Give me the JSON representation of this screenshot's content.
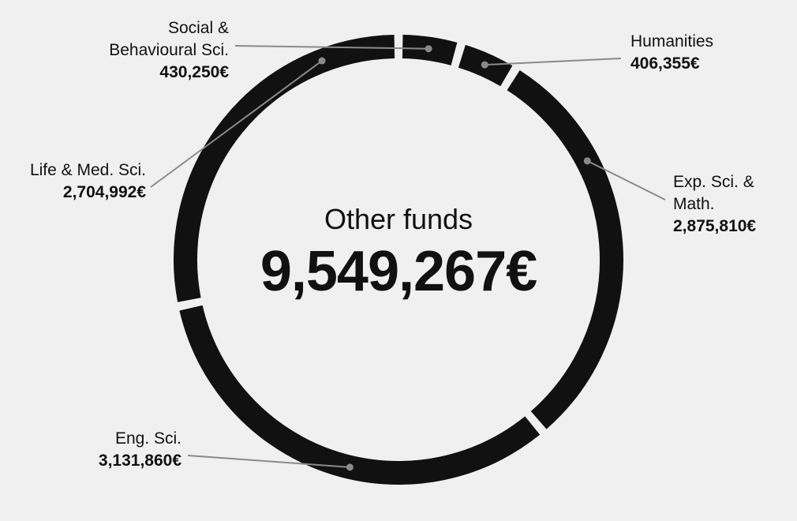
{
  "center": {
    "title": "Other funds",
    "total": "9,549,267€"
  },
  "colors": {
    "background": "#f0f0f0",
    "ring": "#111111",
    "leader": "#8a8a8a"
  },
  "chart_data": {
    "type": "pie",
    "title": "Other funds",
    "total": 9549267,
    "unit": "€",
    "slices": [
      {
        "name": "Social & Behavioural Sci.",
        "name_lines": [
          "Social &",
          "Behavioural Sci."
        ],
        "value": 430250,
        "label": "430,250€"
      },
      {
        "name": "Humanities",
        "name_lines": [
          "Humanities"
        ],
        "value": 406355,
        "label": "406,355€"
      },
      {
        "name": "Exp. Sci. & Math.",
        "name_lines": [
          "Exp. Sci. &",
          "Math."
        ],
        "value": 2875810,
        "label": "2,875,810€"
      },
      {
        "name": "Eng. Sci.",
        "name_lines": [
          "Eng. Sci."
        ],
        "value": 3131860,
        "label": "3,131,860€"
      },
      {
        "name": "Life & Med. Sci.",
        "name_lines": [
          "Life & Med. Sci."
        ],
        "value": 2704992,
        "label": "2,704,992€"
      }
    ]
  }
}
